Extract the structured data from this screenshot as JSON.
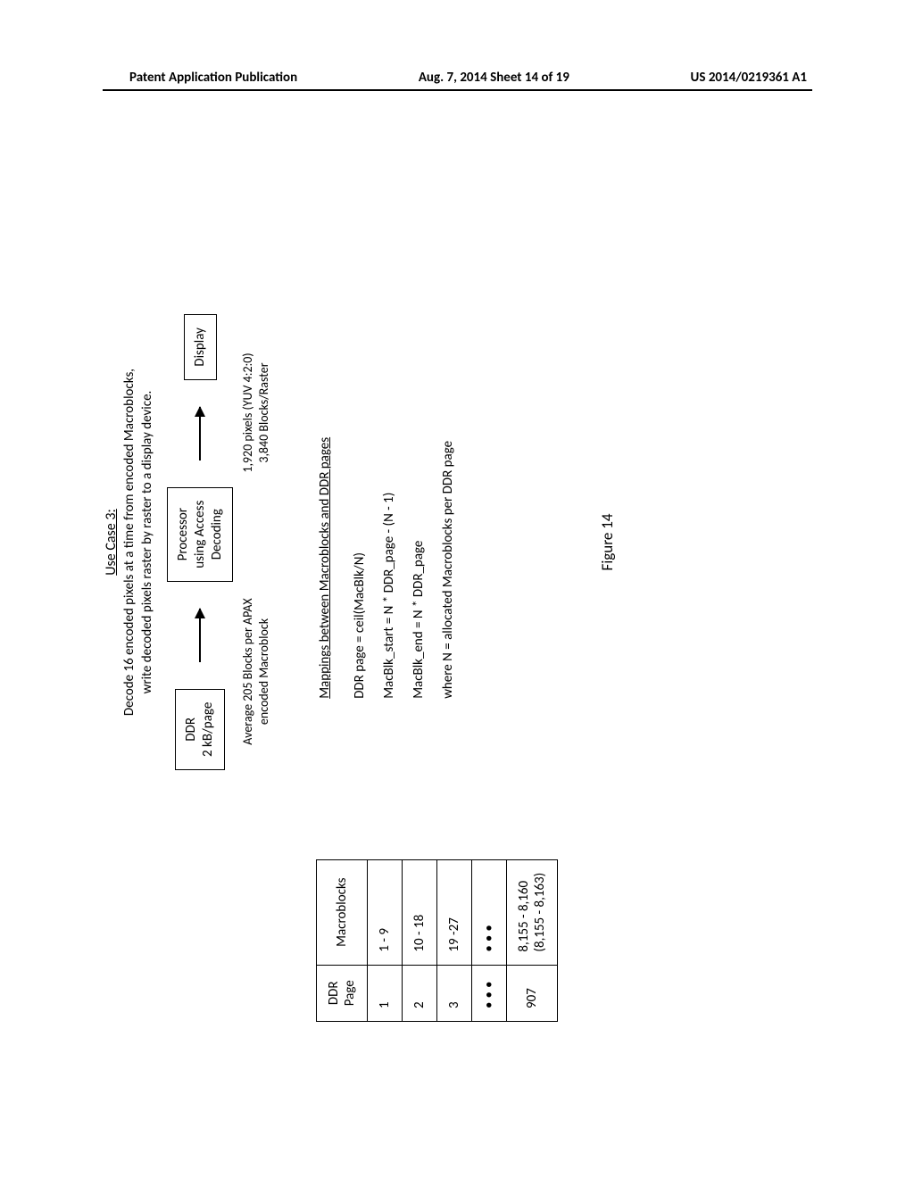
{
  "header": {
    "left": "Patent Application Publication",
    "center": "Aug. 7, 2014  Sheet 14 of 19",
    "right": "US 2014/0219361 A1"
  },
  "usecase": {
    "title": "Use Case 3:",
    "line1": "Decode 16 encoded pixels at a time from encoded Macroblocks,",
    "line2": "write decoded pixels raster by raster to a display device."
  },
  "flow": {
    "box_ddr_l1": "DDR",
    "box_ddr_l2": "2 kB/page",
    "box_proc_l1": "Processor",
    "box_proc_l2": "using Access",
    "box_proc_l3": "Decoding",
    "box_disp": "Display",
    "cap_left_l1": "Average 205 Blocks per APAX",
    "cap_left_l2": "encoded Macroblock",
    "cap_right_l1": "1,920 pixels (YUV 4:2:0)",
    "cap_right_l2": "3,840 Blocks/Raster"
  },
  "table": {
    "col1": "DDR Page",
    "col2": "Macroblocks",
    "rows": [
      {
        "page": "1",
        "mb": "1 - 9"
      },
      {
        "page": "2",
        "mb": "10 - 18"
      },
      {
        "page": "3",
        "mb": "19 -27"
      }
    ],
    "last": {
      "page": "907",
      "mb_l1": "8,155 - 8,160",
      "mb_l2": "(8,155 - 8,163)"
    }
  },
  "formulas": {
    "header": "Mappings between Macroblocks and DDR pages",
    "f1": "DDR page = ceil(MacBlk/N)",
    "f2": "MacBlk_start = N * DDR_page - (N - 1)",
    "f3": "MacBlk_end = N * DDR_page",
    "note": "where N = allocated Macroblocks per DDR page"
  },
  "figure_label": "Figure 14"
}
